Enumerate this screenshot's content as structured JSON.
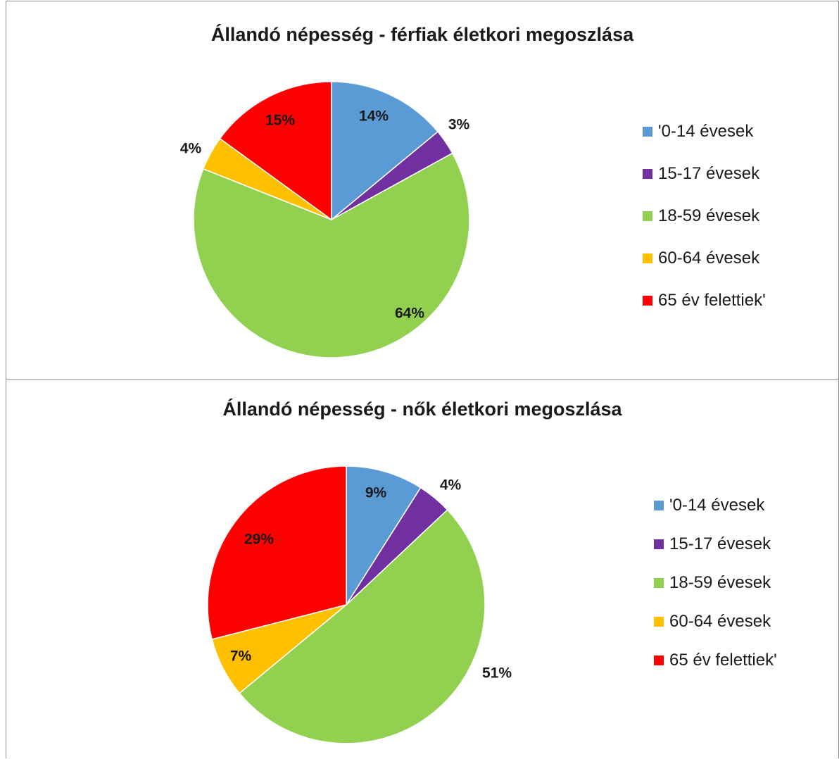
{
  "chart_data": [
    {
      "type": "pie",
      "title": "Állandó népesség - férfiak életkori megoszlása",
      "categories": [
        "'0-14 évesek",
        "15-17 évesek",
        "18-59 évesek",
        "60-64 évesek",
        "65 év felettiek'"
      ],
      "values": [
        14,
        3,
        64,
        4,
        15
      ],
      "labels": [
        "14%",
        "3%",
        "64%",
        "4%",
        "15%"
      ],
      "colors": [
        "#5B9BD5",
        "#7030A0",
        "#92D050",
        "#FFC000",
        "#FF0000"
      ],
      "legend": "right"
    },
    {
      "type": "pie",
      "title": "Állandó népesség - nők életkori megoszlása",
      "categories": [
        "'0-14 évesek",
        "15-17 évesek",
        "18-59 évesek",
        "60-64 évesek",
        "65 év felettiek'"
      ],
      "values": [
        9,
        4,
        51,
        7,
        29
      ],
      "labels": [
        "9%",
        "4%",
        "51%",
        "7%",
        "29%"
      ],
      "colors": [
        "#5B9BD5",
        "#7030A0",
        "#92D050",
        "#FFC000",
        "#FF0000"
      ],
      "legend": "right"
    }
  ]
}
